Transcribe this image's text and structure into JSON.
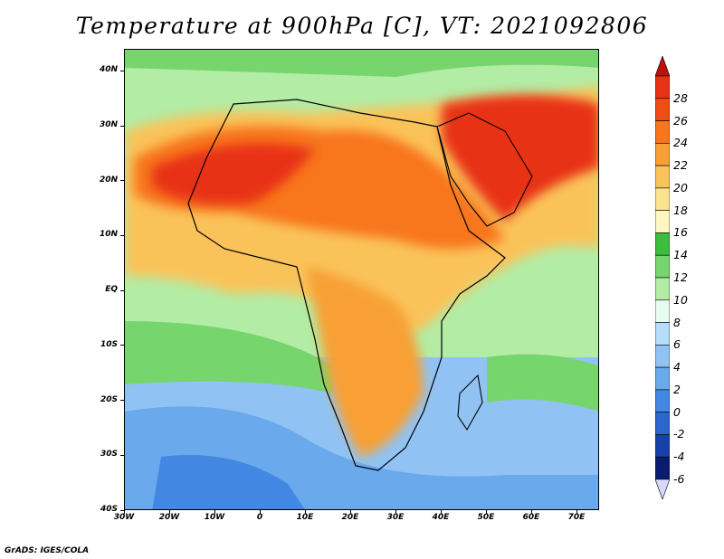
{
  "title": "Temperature at 900hPa [C], VT: 2021092806",
  "credit": "GrADS: IGES/COLA",
  "map": {
    "lon_labels": [
      "30W",
      "20W",
      "10W",
      "0",
      "10E",
      "20E",
      "30E",
      "40E",
      "50E",
      "60E",
      "70E"
    ],
    "lat_labels": [
      "40N",
      "30N",
      "20N",
      "10N",
      "EQ",
      "10S",
      "20S",
      "30S",
      "40S"
    ],
    "lon_range": [
      -30,
      75
    ],
    "lat_range": [
      -40,
      44
    ]
  },
  "colorbar": {
    "labels": [
      "28",
      "26",
      "24",
      "22",
      "20",
      "18",
      "16",
      "14",
      "12",
      "10",
      "8",
      "6",
      "4",
      "2",
      "0",
      "-2",
      "-4",
      "-6"
    ],
    "colors": [
      "#e83216",
      "#f04d16",
      "#f8761c",
      "#f8a035",
      "#fac35a",
      "#fce38f",
      "#fdf7c3",
      "#3cbd3c",
      "#76d56d",
      "#b3eca5",
      "#e8fbf0",
      "#b6ddfa",
      "#90c3f4",
      "#6aa9ec",
      "#4287e2",
      "#2a66cc",
      "#1641a6",
      "#0a1c6e"
    ],
    "top_color": "#b8140c",
    "bottom_color": "#d8d8ff"
  }
}
